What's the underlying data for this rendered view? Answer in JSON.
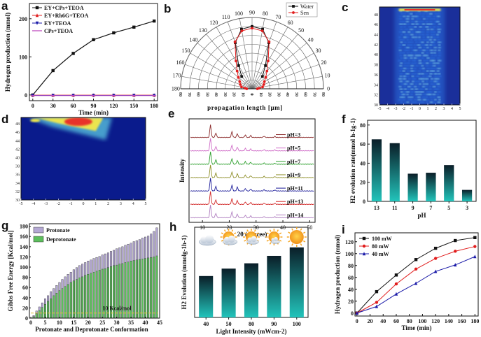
{
  "panels": {
    "a": "a",
    "b": "b",
    "c": "c",
    "d": "d",
    "e": "e",
    "f": "f",
    "g": "g",
    "h": "h",
    "i": "i"
  },
  "chart_data": [
    {
      "id": "a",
      "type": "line",
      "xlabel": "Time (min)",
      "ylabel": "Hydrogen production (mmol)",
      "x": [
        0,
        30,
        60,
        90,
        120,
        150,
        180
      ],
      "xticks": [
        0,
        30,
        60,
        90,
        120,
        150,
        180
      ],
      "yticks": [
        0,
        100,
        200
      ],
      "xlim": [
        -5,
        185
      ],
      "ylim": [
        -15,
        240
      ],
      "series": [
        {
          "name": "EY+CPs+TEOA",
          "color": "#111111",
          "marker": "square",
          "values": [
            0,
            64,
            109,
            145,
            163,
            178,
            194
          ]
        },
        {
          "name": "EY+Rh6G+TEOA",
          "color": "#e11d1d",
          "marker": "triangle-up",
          "values": [
            0,
            0,
            0,
            0,
            0,
            0,
            0
          ]
        },
        {
          "name": "EY+TEOA",
          "color": "#1a1aa8",
          "marker": "triangle-down",
          "values": [
            0,
            0,
            0,
            0,
            0,
            0,
            0
          ]
        },
        {
          "name": "CPs+TEOA",
          "color": "#c04fc0",
          "marker": "line",
          "values": [
            0,
            0,
            0,
            0,
            0,
            0,
            0
          ]
        }
      ]
    },
    {
      "id": "b",
      "type": "polar",
      "xlabel": "propagation length [μm]",
      "angle_ticks": [
        0,
        10,
        20,
        30,
        40,
        50,
        60,
        70,
        80,
        90,
        100,
        110,
        120,
        130,
        140,
        150,
        160,
        170,
        180
      ],
      "radial_ticks": [
        0,
        10,
        20,
        30,
        40,
        50,
        60,
        70,
        80
      ],
      "series": [
        {
          "name": "Water",
          "color": "#111111",
          "marker": "square",
          "angles": [
            50,
            60,
            70,
            80,
            90,
            100,
            110,
            120,
            130
          ],
          "values": [
            18,
            30,
            55,
            68,
            70,
            68,
            55,
            30,
            18
          ]
        },
        {
          "name": "Sen",
          "color": "#e11d1d",
          "marker": "circle",
          "angles": [
            0,
            5,
            10,
            20,
            30,
            40,
            50,
            60,
            70,
            80,
            90,
            100,
            110,
            120,
            130,
            140,
            150,
            160,
            170,
            175,
            180
          ],
          "values": [
            6,
            8,
            12,
            14,
            16,
            20,
            26,
            36,
            56,
            66,
            68,
            66,
            56,
            36,
            26,
            20,
            16,
            14,
            12,
            8,
            6
          ]
        }
      ]
    },
    {
      "id": "c",
      "type": "heatmap",
      "xticks": [
        -5,
        -4,
        -3,
        -2,
        -1,
        0,
        1,
        2,
        3,
        4,
        5
      ],
      "yticks": [
        30,
        32,
        34,
        36,
        38,
        40,
        42,
        44,
        46,
        48
      ],
      "xlim": [
        -5,
        5
      ],
      "ylim": [
        30,
        49.5
      ],
      "colors": [
        "#1a2f9a",
        "#2b6fe0",
        "#7fd2f0",
        "#f4e94a",
        "#e8322a"
      ]
    },
    {
      "id": "d",
      "type": "heatmap",
      "xticks": [
        -5,
        -4,
        -3,
        -2,
        -1,
        0,
        1,
        2,
        3,
        4,
        5
      ],
      "yticks": [
        30,
        32,
        34,
        36,
        38,
        40,
        42,
        44,
        46,
        48
      ],
      "xlim": [
        -5,
        5
      ],
      "ylim": [
        30,
        49.5
      ],
      "colors": [
        "#0a1b8c",
        "#2b6fe0",
        "#62d6e8",
        "#f4e94a",
        "#e8322a"
      ]
    },
    {
      "id": "e",
      "type": "line",
      "xlabel": "2θ (degree)",
      "ylabel": "Intensity",
      "xticks": [
        10,
        20,
        30,
        40,
        50
      ],
      "xlim": [
        5,
        52
      ],
      "series": [
        {
          "name": "pH=3",
          "color": "#8b2a2a"
        },
        {
          "name": "pH=5",
          "color": "#d06ec8"
        },
        {
          "name": "pH=7",
          "color": "#2ea02e"
        },
        {
          "name": "pH=9",
          "color": "#8f8f2a"
        },
        {
          "name": "pH=11",
          "color": "#1c1c9a"
        },
        {
          "name": "pH=13",
          "color": "#d22a2a"
        },
        {
          "name": "pH=14",
          "color": "#b07fc0"
        }
      ],
      "peaks": [
        [
          13,
          1.0
        ],
        [
          15,
          0.35
        ],
        [
          21,
          0.45
        ],
        [
          23,
          0.3
        ],
        [
          26,
          0.2
        ],
        [
          28,
          0.15
        ],
        [
          33,
          0.1
        ],
        [
          37,
          0.08
        ]
      ]
    },
    {
      "id": "f",
      "type": "bar",
      "xlabel": "pH",
      "ylabel": "H2 evolution rate(mmol h-1g-1)",
      "categories": [
        "13",
        "11",
        "9",
        "7",
        "5",
        "3"
      ],
      "values": [
        65,
        61,
        29,
        30,
        38,
        12
      ],
      "yticks": [
        0,
        20,
        40,
        60,
        80
      ],
      "ylim": [
        0,
        85
      ],
      "colors": [
        "#0a1e28",
        "#1fb8b0"
      ]
    },
    {
      "id": "g",
      "type": "bar",
      "xlabel": "Protonate and Deprotonate Conformation",
      "ylabel": "Gibbs Free Energy [Kcal/mol]",
      "annotation": "10 Kcal/mol",
      "xticks": [
        0,
        5,
        10,
        15,
        20,
        25,
        30,
        35,
        40,
        45
      ],
      "yticks": [
        0,
        20,
        40,
        60,
        80,
        100,
        120,
        140,
        160,
        180
      ],
      "xlim": [
        -0.5,
        45
      ],
      "ylim": [
        0,
        185
      ],
      "x": [
        1,
        2,
        3,
        4,
        5,
        6,
        7,
        8,
        9,
        10,
        11,
        12,
        13,
        14,
        15,
        16,
        17,
        18,
        19,
        20,
        21,
        22,
        23,
        24,
        25,
        26,
        27,
        28,
        29,
        30,
        31,
        32,
        33,
        34,
        35,
        36,
        37,
        38,
        39,
        40,
        41,
        42,
        43,
        44
      ],
      "series": [
        {
          "name": "Protonate",
          "color": "#b4a8d4",
          "values": [
            5,
            14,
            22,
            30,
            38,
            44,
            52,
            58,
            64,
            70,
            76,
            81,
            86,
            90,
            95,
            99,
            103,
            106,
            109,
            112,
            114,
            117,
            119,
            121,
            124,
            126,
            128,
            131,
            133,
            136,
            138,
            140,
            143,
            145,
            147,
            150,
            152,
            154,
            157,
            159,
            161,
            165,
            170,
            177
          ]
        },
        {
          "name": "Deprotonate",
          "color": "#5cbf5c",
          "values": [
            3,
            9,
            15,
            21,
            27,
            33,
            38,
            44,
            49,
            54,
            58,
            62,
            66,
            70,
            73,
            76,
            79,
            81,
            84,
            86,
            88,
            90,
            92,
            94,
            96,
            97,
            99,
            101,
            103,
            104,
            106,
            107,
            109,
            110,
            112,
            113,
            114,
            115,
            116,
            117,
            118,
            119,
            120,
            122
          ]
        }
      ]
    },
    {
      "id": "h",
      "type": "bar",
      "xlabel": "Light Intensity (mWcm-2)",
      "ylabel": "H2 Evolution (mmolg-1h-1)",
      "categories": [
        "40",
        "50",
        "80",
        "90",
        "100"
      ],
      "values": [
        39,
        46,
        51,
        58,
        66
      ],
      "ylim": [
        0,
        85
      ],
      "colors": [
        "#0a1e28",
        "#1fb8b0"
      ]
    },
    {
      "id": "i",
      "type": "line",
      "xlabel": "Time (min)",
      "ylabel": "Hydrogen production (mmol)",
      "x": [
        0,
        30,
        60,
        90,
        120,
        150,
        180
      ],
      "xticks": [
        0,
        20,
        40,
        60,
        80,
        100,
        120,
        140,
        160,
        180
      ],
      "yticks": [
        0,
        20,
        40,
        60,
        80,
        100,
        120
      ],
      "xlim": [
        -3,
        185
      ],
      "ylim": [
        -5,
        135
      ],
      "series": [
        {
          "name": "100 mW",
          "color": "#111111",
          "marker": "square",
          "values": [
            0,
            36,
            64,
            90,
            109,
            122,
            127
          ]
        },
        {
          "name": "80 mW",
          "color": "#e11d1d",
          "marker": "circle",
          "values": [
            0,
            18,
            49,
            74,
            92,
            104,
            112
          ]
        },
        {
          "name": "40 mW",
          "color": "#1a1aa8",
          "marker": "triangle-up",
          "values": [
            0,
            11,
            32,
            50,
            70,
            81,
            95
          ]
        }
      ]
    }
  ]
}
